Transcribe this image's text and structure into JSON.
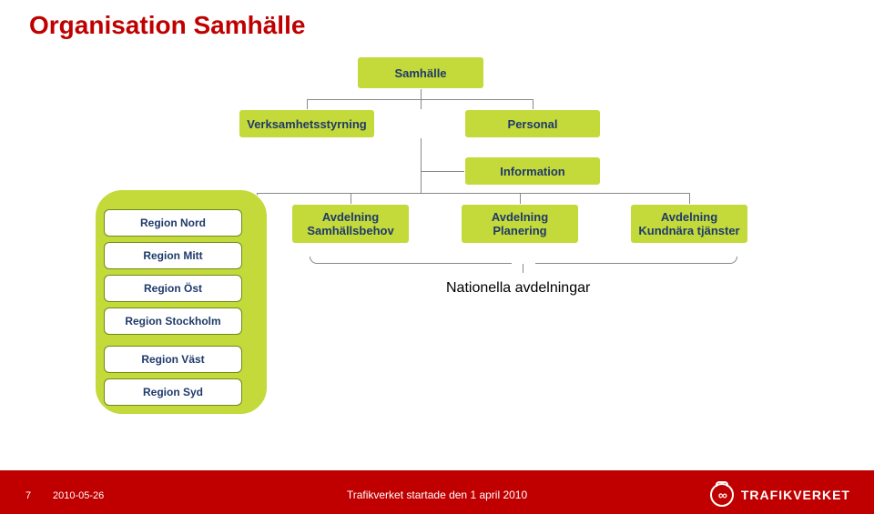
{
  "title": {
    "text": "Organisation Samhälle",
    "color": "#c00000",
    "fontsize": 28
  },
  "colors": {
    "box_fill": "#c4d93a",
    "box_text": "#1f3a6b",
    "region_border": "#6f8a1a",
    "connector": "#888888",
    "footer_bg": "#c00000",
    "footer_text": "#ffffff",
    "page_bg": "#ffffff"
  },
  "org": {
    "root": "Samhälle",
    "row1_left": "Verksamhetsstyrning",
    "row1_right": "Personal",
    "row1b_right": "Information",
    "avd": [
      {
        "line1": "Avdelning",
        "line2": "Samhällsbehov"
      },
      {
        "line1": "Avdelning",
        "line2": "Planering"
      },
      {
        "line1": "Avdelning",
        "line2": "Kundnära tjänster"
      }
    ],
    "regions": [
      "Region Nord",
      "Region Mitt",
      "Region Öst",
      "Region Stockholm",
      "Region Väst",
      "Region Syd"
    ],
    "nationella_label": "Nationella avdelningar"
  },
  "footer": {
    "page_number": "7",
    "date": "2010-05-26",
    "center_text": "Trafikverket startade den 1 april 2010",
    "logo_text": "TRAFIKVERKET",
    "logo_glyph": "∞"
  }
}
